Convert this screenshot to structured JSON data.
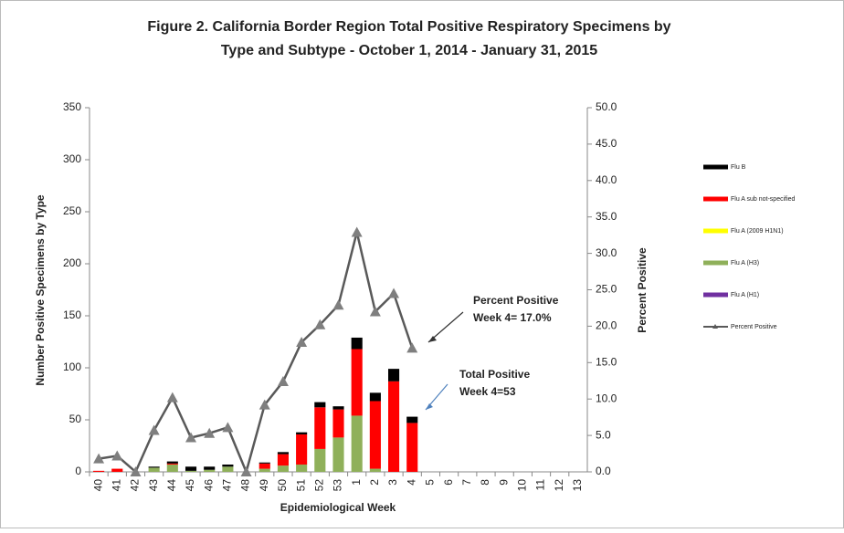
{
  "chart_data": {
    "type": "bar",
    "title": [
      "Figure 2. California Border Region Total Positive Respiratory Specimens by",
      "Type and Subtype - October 1, 2014 - January 31, 2015"
    ],
    "x_label": "Epidemiological Week",
    "y_label": "Number Positive Specimens by Type",
    "y2_label": "Percent Positive",
    "categories": [
      "40",
      "41",
      "42",
      "43",
      "44",
      "45",
      "46",
      "47",
      "48",
      "49",
      "50",
      "51",
      "52",
      "53",
      "1",
      "2",
      "3",
      "4",
      "5",
      "6",
      "7",
      "8",
      "9",
      "10",
      "11",
      "12",
      "13"
    ],
    "series": [
      {
        "name": "Flu A (H1)",
        "color": "#7030a0",
        "values": [
          0,
          0,
          0,
          0,
          0,
          0,
          0,
          0,
          0,
          0,
          0,
          0,
          0,
          0,
          0,
          0,
          0,
          0,
          0,
          0,
          0,
          0,
          0,
          0,
          0,
          0,
          0
        ]
      },
      {
        "name": "Flu A (H3)",
        "color": "#8fb05a",
        "values": [
          0,
          0,
          0,
          4,
          7,
          1,
          2,
          5,
          0,
          3,
          6,
          7,
          22,
          33,
          54,
          3,
          0,
          0,
          0,
          0,
          0,
          0,
          0,
          0,
          0,
          0,
          0
        ]
      },
      {
        "name": "Flu A (2009 H1N1)",
        "color": "#ffff00",
        "values": [
          0,
          0,
          0,
          0,
          0,
          0,
          0,
          0,
          0,
          0,
          0,
          0,
          0,
          0,
          0,
          0,
          0,
          0,
          0,
          0,
          0,
          0,
          0,
          0,
          0,
          0,
          0
        ]
      },
      {
        "name": "Flu A sub not-specified",
        "color": "#ff0000",
        "values": [
          1,
          3,
          0,
          0,
          1,
          0,
          0,
          0,
          0,
          5,
          11,
          29,
          40,
          27,
          64,
          65,
          87,
          47,
          0,
          0,
          0,
          0,
          0,
          0,
          0,
          0,
          0
        ]
      },
      {
        "name": "Flu B",
        "color": "#000000",
        "values": [
          0,
          0,
          0,
          1,
          2,
          4,
          3,
          2,
          0,
          1,
          2,
          2,
          5,
          3,
          11,
          8,
          12,
          6,
          0,
          0,
          0,
          0,
          0,
          0,
          0,
          0,
          0
        ]
      },
      {
        "name": "Percent Positive",
        "color": "#595959",
        "axis": "y2",
        "type": "line",
        "values": [
          1.8,
          2.2,
          0,
          5.7,
          10.2,
          4.7,
          5.3,
          6.1,
          0,
          9.2,
          12.4,
          17.8,
          20.2,
          22.9,
          32.9,
          22.0,
          24.5,
          17.0,
          null,
          null,
          null,
          null,
          null,
          null,
          null,
          null,
          null
        ]
      }
    ],
    "legend_order": [
      4,
      3,
      2,
      1,
      0,
      5
    ],
    "ylim": [
      0,
      350
    ],
    "yticks": [
      0,
      50,
      100,
      150,
      200,
      250,
      300,
      350
    ],
    "y2lim": [
      0,
      50
    ],
    "y2ticks": [
      {
        "value": 0,
        "label": "0.0"
      },
      {
        "value": 5,
        "label": "5.0"
      },
      {
        "value": 10,
        "label": "10.0"
      },
      {
        "value": 15,
        "label": "15.0"
      },
      {
        "value": 20,
        "label": "20.0"
      },
      {
        "value": 25,
        "label": "25.0"
      },
      {
        "value": 30,
        "label": "30.0"
      },
      {
        "value": 35,
        "label": "35.0"
      },
      {
        "value": 40,
        "label": "40.0"
      },
      {
        "value": 45,
        "label": "45.0"
      },
      {
        "value": 50,
        "label": "50.0"
      }
    ],
    "annotations": [
      {
        "lines": [
          "Percent Positive",
          "Week 4= 17.0%"
        ],
        "color": "#000000"
      },
      {
        "lines": [
          "Total Positive",
          "Week  4=53"
        ],
        "color": "#4f81bd"
      }
    ]
  }
}
